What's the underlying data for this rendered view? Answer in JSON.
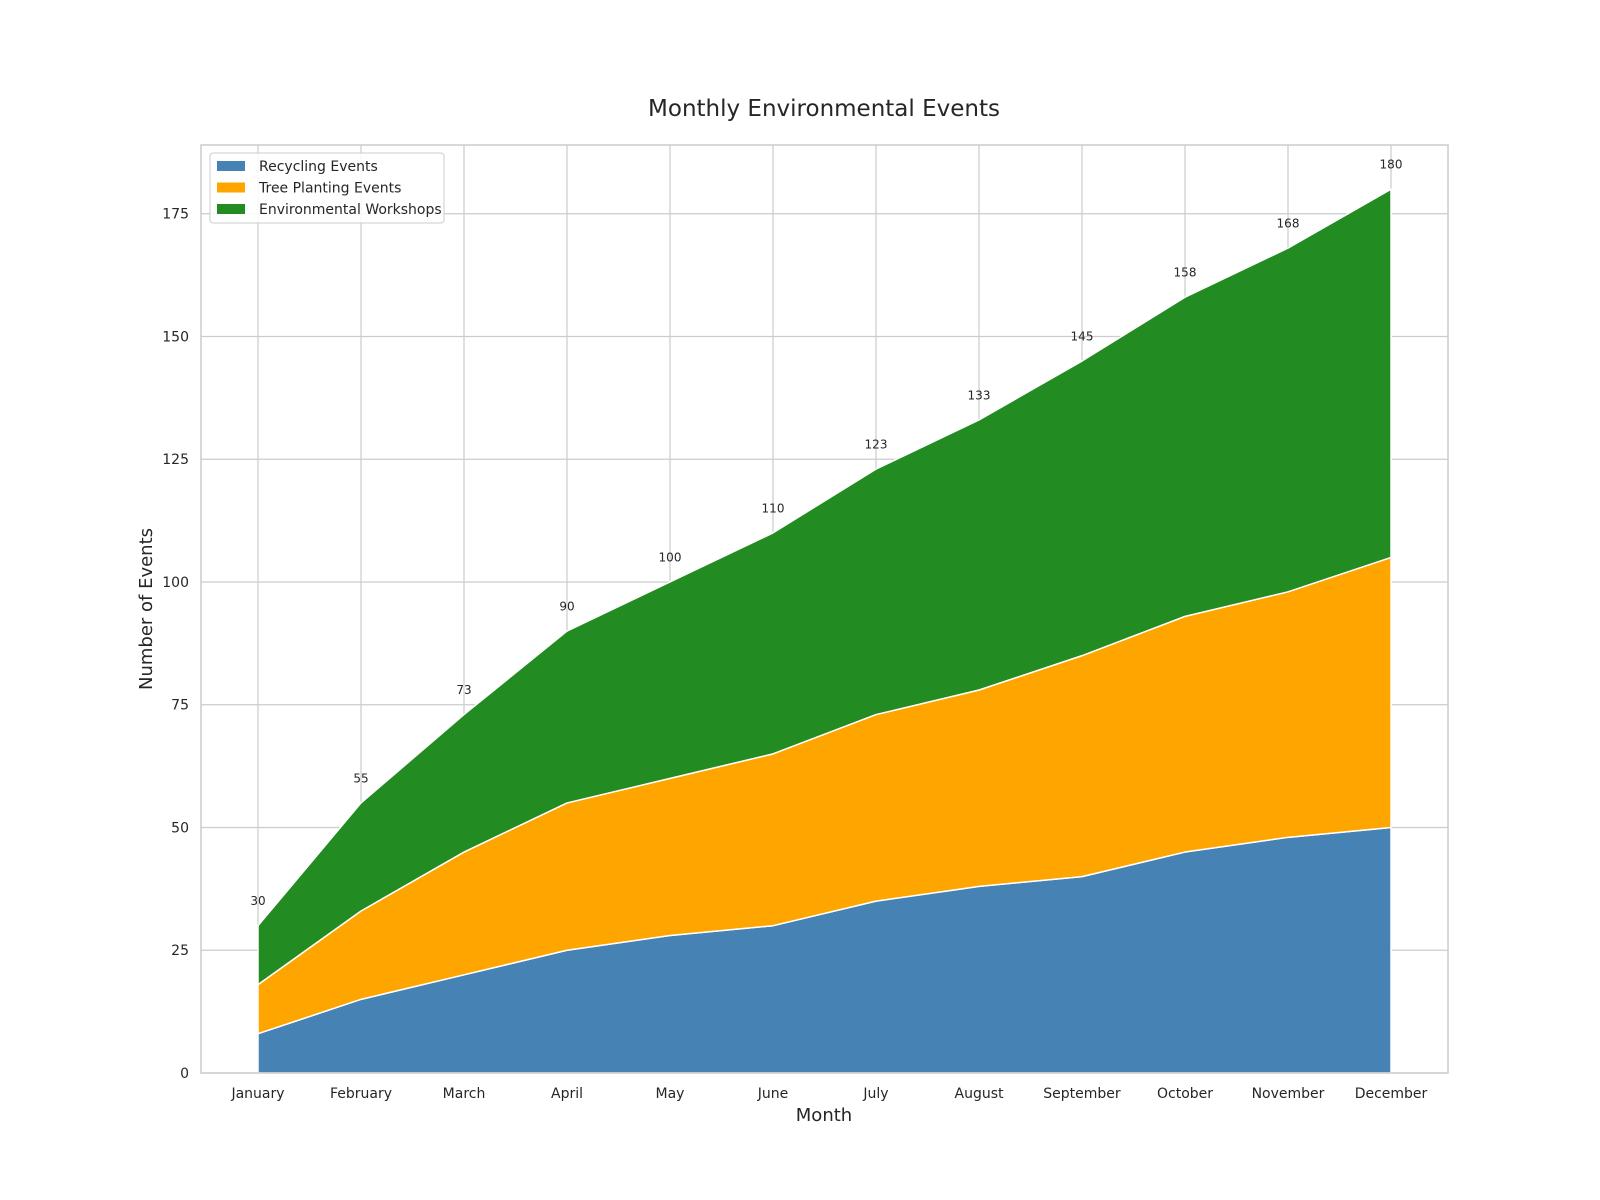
{
  "chart_data": {
    "type": "area",
    "stacked": true,
    "title": "Monthly Environmental Events",
    "xlabel": "Month",
    "ylabel": "Number of Events",
    "ylim": [
      0,
      189
    ],
    "yticks": [
      0,
      25,
      50,
      75,
      100,
      125,
      150,
      175
    ],
    "grid": true,
    "legend_position": "top-left",
    "categories": [
      "January",
      "February",
      "March",
      "April",
      "May",
      "June",
      "July",
      "August",
      "September",
      "October",
      "November",
      "December"
    ],
    "series": [
      {
        "name": "Recycling Events",
        "color": "#4682b4",
        "values": [
          8,
          15,
          20,
          25,
          28,
          30,
          35,
          38,
          40,
          45,
          48,
          50
        ]
      },
      {
        "name": "Tree Planting Events",
        "color": "#ffa500",
        "values": [
          10,
          18,
          25,
          30,
          32,
          35,
          38,
          40,
          45,
          48,
          50,
          55
        ]
      },
      {
        "name": "Environmental Workshops",
        "color": "#228b22",
        "values": [
          12,
          22,
          28,
          35,
          40,
          45,
          50,
          55,
          60,
          65,
          70,
          75
        ]
      }
    ],
    "totals": [
      30,
      55,
      73,
      90,
      100,
      110,
      123,
      133,
      145,
      158,
      168,
      180
    ]
  }
}
